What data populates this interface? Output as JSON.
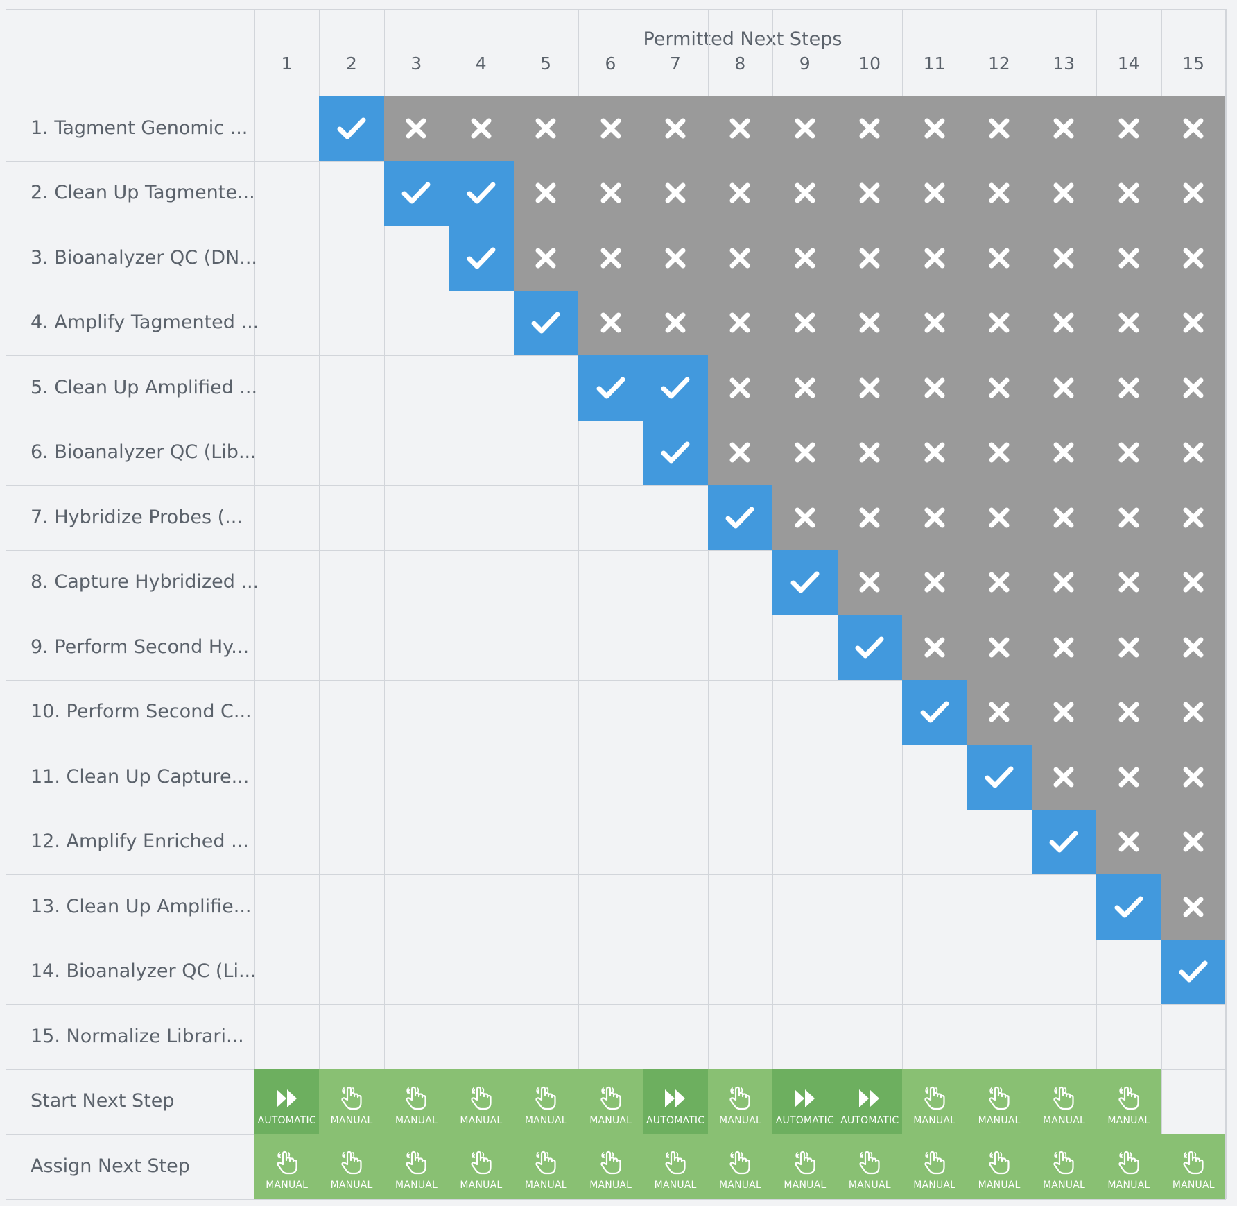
{
  "header": {
    "title": "Permitted Next Steps"
  },
  "columns": [
    "1",
    "2",
    "3",
    "4",
    "5",
    "6",
    "7",
    "8",
    "9",
    "10",
    "11",
    "12",
    "13",
    "14",
    "15"
  ],
  "steps": [
    {
      "label": "1. Tagment Genomic ...",
      "permitted": [
        2
      ]
    },
    {
      "label": "2. Clean Up Tagmente...",
      "permitted": [
        3,
        4
      ]
    },
    {
      "label": "3. Bioanalyzer QC (DN...",
      "permitted": [
        4
      ]
    },
    {
      "label": "4. Amplify Tagmented ...",
      "permitted": [
        5
      ]
    },
    {
      "label": "5. Clean Up Amplified ...",
      "permitted": [
        6,
        7
      ]
    },
    {
      "label": "6. Bioanalyzer QC (Lib...",
      "permitted": [
        7
      ]
    },
    {
      "label": "7. Hybridize Probes (...",
      "permitted": [
        8
      ]
    },
    {
      "label": "8. Capture Hybridized ...",
      "permitted": [
        9
      ]
    },
    {
      "label": "9. Perform Second Hy...",
      "permitted": [
        10
      ]
    },
    {
      "label": "10. Perform Second C...",
      "permitted": [
        11
      ]
    },
    {
      "label": "11. Clean Up Capture...",
      "permitted": [
        12
      ]
    },
    {
      "label": "12. Amplify Enriched ...",
      "permitted": [
        13
      ]
    },
    {
      "label": "13. Clean Up Amplifie...",
      "permitted": [
        14
      ]
    },
    {
      "label": "14. Bioanalyzer QC (Li...",
      "permitted": [
        15
      ]
    },
    {
      "label": "15. Normalize Librari...",
      "permitted": []
    }
  ],
  "start_next_step": {
    "label": "Start Next Step",
    "values": [
      "AUTOMATIC",
      "MANUAL",
      "MANUAL",
      "MANUAL",
      "MANUAL",
      "MANUAL",
      "AUTOMATIC",
      "MANUAL",
      "AUTOMATIC",
      "AUTOMATIC",
      "MANUAL",
      "MANUAL",
      "MANUAL",
      "MANUAL",
      ""
    ]
  },
  "assign_next_step": {
    "label": "Assign Next Step",
    "values": [
      "MANUAL",
      "MANUAL",
      "MANUAL",
      "MANUAL",
      "MANUAL",
      "MANUAL",
      "MANUAL",
      "MANUAL",
      "MANUAL",
      "MANUAL",
      "MANUAL",
      "MANUAL",
      "MANUAL",
      "MANUAL",
      "MANUAL"
    ]
  },
  "icons": {
    "permitted": "checkmark-icon",
    "not_permitted": "x-icon",
    "automatic": "fast-forward-icon",
    "manual": "pointing-hand-icon"
  },
  "colors": {
    "permitted": "#4299dd",
    "not_permitted": "#9a9a9a",
    "manual": "#89c073",
    "automatic": "#6daf5f"
  }
}
